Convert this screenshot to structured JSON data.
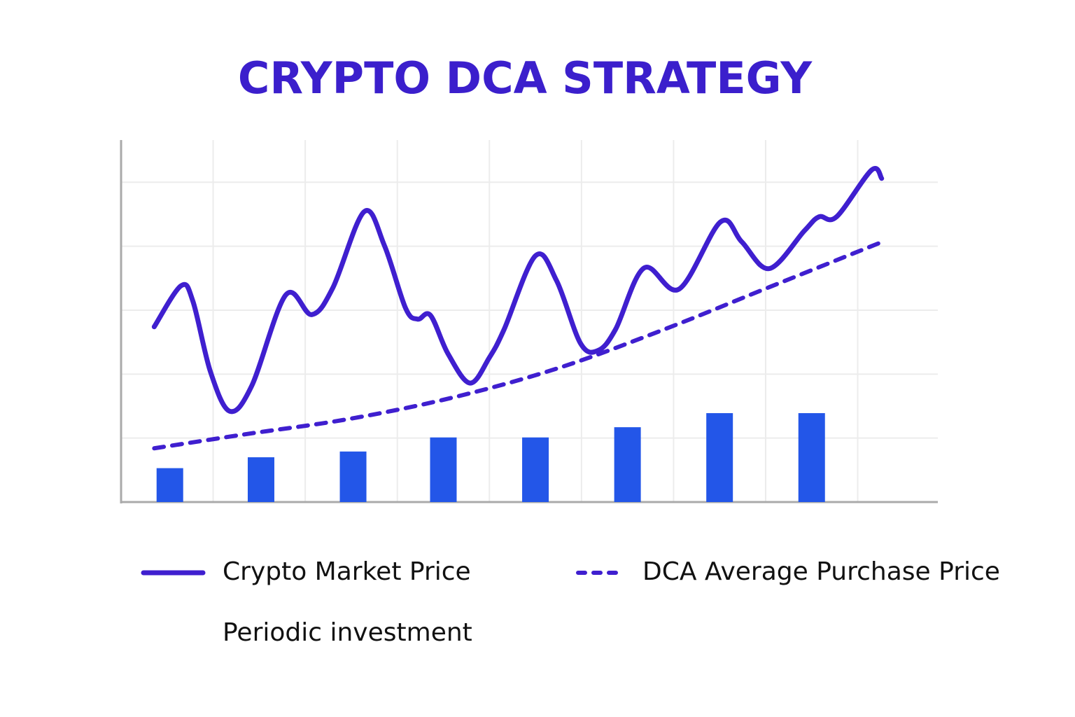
{
  "chart_data": {
    "type": "combo",
    "title": "CRYPTO DCA STRATEGY",
    "xlim": [
      0,
      8.87
    ],
    "xticks": [
      0,
      1,
      2,
      3,
      4,
      5,
      6,
      7,
      8
    ],
    "ylim": [
      0,
      5.66
    ],
    "yticks": [
      0,
      1,
      2,
      3,
      4,
      5
    ],
    "grid": true,
    "series": [
      {
        "name": "Crypto Market Price",
        "type": "line",
        "style": "solid",
        "color": "#3f1fcf",
        "x": [
          0.36,
          0.65,
          0.78,
          0.97,
          1.18,
          1.42,
          1.79,
          2.07,
          2.3,
          2.64,
          2.86,
          3.09,
          3.22,
          3.36,
          3.55,
          3.79,
          4.0,
          4.16,
          4.5,
          4.73,
          4.99,
          5.18,
          5.37,
          5.68,
          6.06,
          6.51,
          6.74,
          7.04,
          7.42,
          7.58,
          7.77,
          8.15,
          8.26
        ],
        "values": [
          2.74,
          3.38,
          3.14,
          2.04,
          1.42,
          1.82,
          3.24,
          2.93,
          3.35,
          4.54,
          4.01,
          3.03,
          2.86,
          2.92,
          2.32,
          1.86,
          2.26,
          2.7,
          3.85,
          3.46,
          2.48,
          2.37,
          2.7,
          3.66,
          3.33,
          4.38,
          4.07,
          3.65,
          4.24,
          4.46,
          4.46,
          5.19,
          5.06
        ]
      },
      {
        "name": "DCA Average Purchase Price",
        "type": "line",
        "style": "dashed",
        "color": "#3f1fcf",
        "x": [
          0.36,
          1.35,
          2.48,
          3.62,
          4.76,
          5.9,
          7.04,
          8.27
        ],
        "values": [
          0.84,
          1.06,
          1.3,
          1.64,
          2.1,
          2.7,
          3.36,
          4.07
        ]
      },
      {
        "name": "Periodic investment",
        "type": "bar",
        "color": "#2356e8",
        "x": [
          0.53,
          1.52,
          2.52,
          3.5,
          4.5,
          5.5,
          6.5,
          7.5
        ],
        "values": [
          0.53,
          0.7,
          0.79,
          1.01,
          1.01,
          1.17,
          1.39,
          1.39
        ]
      }
    ]
  }
}
